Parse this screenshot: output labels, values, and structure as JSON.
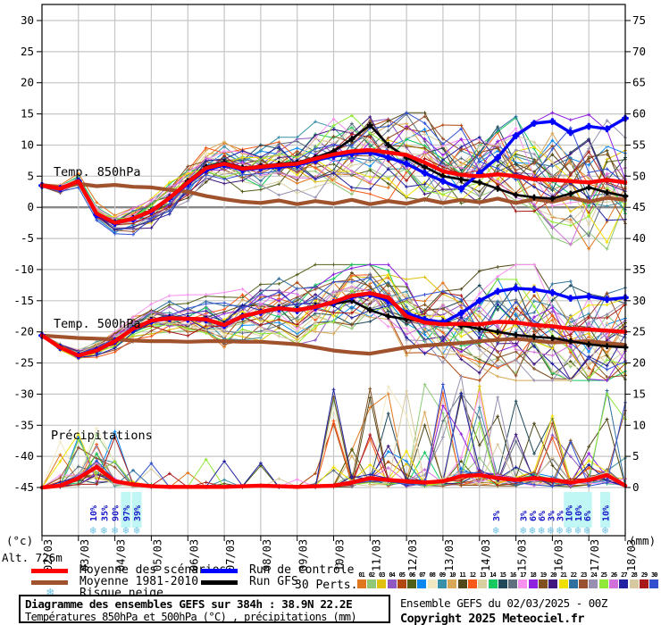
{
  "chart": {
    "alt_label": "Alt. 726m",
    "left_unit": "(°c)",
    "right_unit": "(mm)",
    "snowflake_char": "❄",
    "panel_labels": {
      "t850": "Temp. 850hPa",
      "t500": "Temp. 500hPa",
      "precip": "Précipitations"
    }
  },
  "chart_data": {
    "type": "line",
    "title": "Diagramme des ensembles GEFS sur 384h : 38.9N 22.2E",
    "x_axis": {
      "tick_labels": [
        "02/03",
        "03/03",
        "04/03",
        "05/03",
        "06/03",
        "07/03",
        "08/03",
        "09/03",
        "10/03",
        "11/03",
        "12/03",
        "13/03",
        "14/03",
        "15/03",
        "16/03",
        "17/03",
        "18/03"
      ],
      "days_total": 16
    },
    "y_axis_left": {
      "unit": "°c",
      "min": -45,
      "max": 30,
      "step": 5
    },
    "y_axis_right": {
      "unit": "mm",
      "min": 0,
      "max": 75,
      "step": 5
    },
    "grid": true,
    "x_days": [
      0,
      0.5,
      1,
      1.5,
      2,
      2.5,
      3,
      3.5,
      4,
      4.5,
      5,
      5.5,
      6,
      6.5,
      7,
      7.5,
      8,
      8.5,
      9,
      9.5,
      10,
      10.5,
      11,
      11.5,
      12,
      12.5,
      13,
      13.5,
      14,
      14.5,
      15,
      15.5,
      16
    ],
    "series": {
      "t850_mean": {
        "name": "Moyenne des scénarios 850hPa",
        "color": "#ff0000",
        "values": [
          3.5,
          3.0,
          4.2,
          -1.0,
          -2.5,
          -1.8,
          -0.6,
          1.5,
          4.0,
          6.3,
          7.0,
          6.2,
          6.5,
          6.8,
          7.0,
          7.8,
          8.5,
          9.0,
          9.2,
          8.8,
          8.4,
          7.2,
          5.8,
          5.2,
          5.0,
          5.3,
          5.0,
          4.5,
          4.4,
          4.2,
          4.0,
          4.4,
          4.0
        ]
      },
      "t850_clim": {
        "name": "Moyenne 1981-2010 850hPa",
        "color": "#a0522d",
        "values": [
          3.6,
          3.2,
          3.8,
          3.4,
          3.6,
          3.3,
          3.2,
          2.8,
          2.5,
          1.8,
          1.3,
          0.9,
          0.7,
          1.1,
          0.5,
          1.0,
          0.6,
          1.2,
          0.5,
          1.0,
          0.6,
          1.3,
          0.7,
          1.2,
          0.8,
          1.4,
          0.7,
          1.3,
          0.9,
          1.6,
          0.9,
          1.5,
          1.2
        ]
      },
      "t850_control": {
        "name": "Run de contrôle 850hPa",
        "color": "#0000ff",
        "values": [
          3.5,
          3.0,
          4.2,
          -1.2,
          -2.6,
          -1.9,
          -0.7,
          1.4,
          3.8,
          6.0,
          6.8,
          6.0,
          6.3,
          6.5,
          6.8,
          7.5,
          8.2,
          8.6,
          8.8,
          8.0,
          7.0,
          5.5,
          4.2,
          3.0,
          5.5,
          8.0,
          11.5,
          13.5,
          13.8,
          12.0,
          13.0,
          12.6,
          14.3
        ]
      },
      "t850_gfs": {
        "name": "Run GFS 850hPa",
        "color": "#000000",
        "values": [
          3.5,
          3.1,
          4.3,
          -1.1,
          -2.4,
          -1.7,
          -0.5,
          1.6,
          4.2,
          6.5,
          7.2,
          6.4,
          6.6,
          7.0,
          7.2,
          8.0,
          9.0,
          11.0,
          13.2,
          10.0,
          8.0,
          6.5,
          5.0,
          4.5,
          4.0,
          3.0,
          2.0,
          1.6,
          1.4,
          2.2,
          3.2,
          2.4,
          1.8
        ]
      },
      "t500_mean": {
        "name": "Moyenne des scénarios 500hPa",
        "color": "#ff0000",
        "values": [
          -20.6,
          -22.5,
          -23.8,
          -23.0,
          -21.5,
          -19.5,
          -18.2,
          -17.8,
          -17.9,
          -18.0,
          -18.9,
          -17.5,
          -16.8,
          -16.2,
          -16.5,
          -16.0,
          -15.2,
          -14.2,
          -13.8,
          -14.5,
          -17.5,
          -18.5,
          -18.8,
          -18.7,
          -18.8,
          -18.4,
          -18.5,
          -18.9,
          -19.1,
          -19.5,
          -19.6,
          -19.8,
          -20.0
        ]
      },
      "t500_clim": {
        "name": "Moyenne 1981-2010 500hPa",
        "color": "#a0522d",
        "values": [
          -20.6,
          -20.8,
          -21.0,
          -21.1,
          -21.2,
          -21.4,
          -21.5,
          -21.5,
          -21.6,
          -21.5,
          -21.5,
          -21.6,
          -21.6,
          -21.8,
          -22.0,
          -22.5,
          -23.0,
          -23.3,
          -23.5,
          -23.0,
          -22.5,
          -22.2,
          -22.0,
          -21.8,
          -21.5,
          -21.3,
          -21.1,
          -21.4,
          -21.7,
          -21.6,
          -21.5,
          -21.8,
          -22.1
        ]
      },
      "t500_control": {
        "name": "Run de contrôle 500hPa",
        "color": "#0000ff",
        "values": [
          -20.6,
          -22.5,
          -23.8,
          -23.0,
          -21.5,
          -19.6,
          -18.3,
          -17.9,
          -18.0,
          -18.1,
          -19.0,
          -17.6,
          -16.9,
          -16.3,
          -16.6,
          -16.1,
          -15.3,
          -14.4,
          -14.0,
          -15.0,
          -17.0,
          -18.0,
          -18.5,
          -17.0,
          -15.0,
          -13.5,
          -13.0,
          -13.2,
          -13.7,
          -14.6,
          -14.3,
          -14.8,
          -14.5
        ]
      },
      "t500_gfs": {
        "name": "Run GFS 500hPa",
        "color": "#000000",
        "values": [
          -20.6,
          -22.4,
          -23.7,
          -22.9,
          -21.4,
          -19.4,
          -18.1,
          -17.7,
          -17.8,
          -17.9,
          -18.8,
          -17.4,
          -16.7,
          -16.1,
          -16.4,
          -15.8,
          -15.5,
          -15.0,
          -16.5,
          -17.5,
          -18.0,
          -18.3,
          -18.3,
          -19.0,
          -19.5,
          -20.0,
          -20.5,
          -20.8,
          -21.0,
          -21.5,
          -22.0,
          -22.3,
          -22.5
        ]
      },
      "precip_mean": {
        "name": "Moyenne des scénarios précipitations",
        "color": "#ff0000",
        "values": [
          0,
          0.3,
          1.5,
          3.3,
          1.0,
          0.5,
          0.2,
          0.1,
          0.1,
          0.1,
          0.1,
          0.2,
          0.3,
          0.2,
          0.1,
          0.2,
          0.3,
          0.8,
          1.5,
          1.2,
          1.0,
          0.8,
          1.0,
          1.8,
          2.0,
          1.5,
          1.2,
          1.5,
          1.2,
          0.8,
          1.2,
          2.0,
          0.3
        ]
      }
    },
    "ensemble_members": {
      "count": 30,
      "note": "30 perturbation runs drawn as thin colored lines with + markers; individual member values are not labeled on the chart and are synthesized around the ensemble mean with lead-time-growing spread."
    },
    "snow_risk": {
      "groups": [
        {
          "items": [
            {
              "label": "10%",
              "day": 1.4,
              "highlight": false
            },
            {
              "label": "35%",
              "day": 1.7,
              "highlight": false
            },
            {
              "label": "90%",
              "day": 2.0,
              "highlight": false
            },
            {
              "label": "97%",
              "day": 2.3,
              "highlight": true
            },
            {
              "label": "39%",
              "day": 2.6,
              "highlight": true
            }
          ]
        },
        {
          "items": [
            {
              "label": "3%",
              "day": 12.45,
              "highlight": false
            }
          ]
        },
        {
          "items": [
            {
              "label": "3%",
              "day": 13.2,
              "highlight": false
            },
            {
              "label": "6%",
              "day": 13.45,
              "highlight": false
            },
            {
              "label": "6%",
              "day": 13.7,
              "highlight": false
            },
            {
              "label": "3%",
              "day": 13.95,
              "highlight": false
            },
            {
              "label": "3%",
              "day": 14.2,
              "highlight": false
            },
            {
              "label": "10%",
              "day": 14.45,
              "highlight": true
            },
            {
              "label": "10%",
              "day": 14.7,
              "highlight": true
            },
            {
              "label": "6%",
              "day": 14.95,
              "highlight": true
            }
          ]
        },
        {
          "items": [
            {
              "label": "10%",
              "day": 15.45,
              "highlight": true
            }
          ]
        }
      ]
    }
  },
  "legend": {
    "mean_label": "Moyenne des scénarios",
    "clim_label": "Moyenne 1981-2010",
    "control_label": "Run de contrôle",
    "gfs_label": "Run GFS",
    "snow_label": "Risque neige",
    "perts_label": "30 Perts."
  },
  "perts": {
    "numbers": [
      "01",
      "02",
      "03",
      "04",
      "05",
      "06",
      "07",
      "08",
      "09",
      "10",
      "11",
      "12",
      "13",
      "14",
      "15",
      "16",
      "17",
      "18",
      "19",
      "20",
      "21",
      "22",
      "23",
      "24",
      "25",
      "26",
      "27",
      "28",
      "29",
      "30"
    ],
    "colors": [
      "#e07820",
      "#90c878",
      "#e0c010",
      "#9058c0",
      "#b04810",
      "#506018",
      "#0888f0",
      "#efe8c0",
      "#3890a8",
      "#d8a858",
      "#504818",
      "#f85818",
      "#d8d0a0",
      "#18c860",
      "#1f4858",
      "#607080",
      "#f890f0",
      "#9020e0",
      "#805020",
      "#401880",
      "#f0e000",
      "#3070a0",
      "#985030",
      "#9890b0",
      "#90e838",
      "#d070d8",
      "#2020a0",
      "#d8c8a0",
      "#a81818",
      "#3050d0"
    ]
  },
  "colors": {
    "mean": "#ff0000",
    "climatology": "#a0522d",
    "control": "#0000ff",
    "gfs": "#000000",
    "grid": "#c6c6c6",
    "zero_line": "#888888",
    "snow_text": "#1818c8",
    "snow_flake": "#6fc2e6",
    "snow_highlight": "#c0f6f4"
  },
  "footer": {
    "title": "Diagramme des ensembles GEFS sur 384h : 38.9N 22.2E",
    "subtitle": "Températures 850hPa et 500hPa (°C) , précipitations (mm)",
    "run_info": "Ensemble GEFS du 02/03/2025 - 00Z",
    "copyright": "Copyright 2025 Meteociel.fr"
  }
}
